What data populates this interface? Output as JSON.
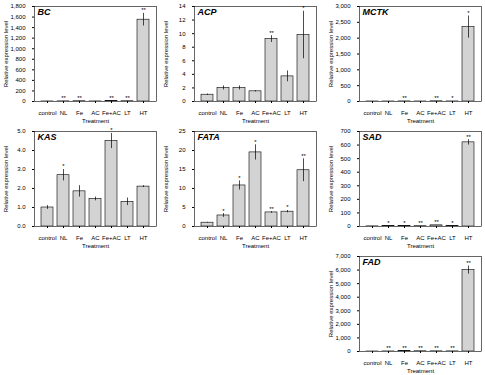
{
  "chart_data": [
    {
      "type": "bar",
      "title": "BC",
      "x_label": "Treatment",
      "y_label": "Relative expression level",
      "color": "#d3d3d3",
      "categories": [
        "control",
        "NL",
        "Fe",
        "AC",
        "Fe+AC",
        "LT",
        "HT"
      ],
      "values": [
        1,
        2.5,
        5,
        1.5,
        11,
        5,
        1550
      ],
      "error": [
        0.3,
        0.4,
        0.4,
        0.2,
        0.8,
        0.5,
        120
      ],
      "significance": [
        null,
        "**",
        "**",
        null,
        "**",
        "**",
        "**"
      ],
      "ylim": [
        0,
        1800
      ],
      "yticks": [
        0,
        200,
        400,
        600,
        800,
        1000,
        1200,
        1400,
        1600,
        1800
      ]
    },
    {
      "type": "bar",
      "title": "ACP",
      "x_label": "Treatment",
      "y_label": "Relative expression level",
      "color": "#d3d3d3",
      "categories": [
        "control",
        "NL",
        "Fe",
        "AC",
        "Fe+AC",
        "LT",
        "HT"
      ],
      "values": [
        1,
        2,
        2,
        1.5,
        9.2,
        3.7,
        9.8
      ],
      "error": [
        0.1,
        0.3,
        0.3,
        0.1,
        0.5,
        0.8,
        3.5
      ],
      "significance": [
        null,
        null,
        null,
        null,
        "**",
        null,
        "*"
      ],
      "ylim": [
        0,
        14
      ],
      "yticks": [
        0,
        2,
        4,
        6,
        8,
        10,
        12,
        14
      ]
    },
    {
      "type": "bar",
      "title": "MCTK",
      "x_label": "Treatment",
      "y_label": "Relative expression level",
      "color": "#d3d3d3",
      "categories": [
        "control",
        "NL",
        "Fe",
        "AC",
        "Fe+AC",
        "LT",
        "HT"
      ],
      "values": [
        1,
        0.5,
        3,
        0.7,
        6.5,
        2,
        2350
      ],
      "error": [
        0.2,
        0.2,
        0.3,
        0.1,
        0.4,
        0.3,
        350
      ],
      "significance": [
        null,
        null,
        "**",
        null,
        "**",
        "*",
        "*"
      ],
      "ylim": [
        0,
        3000
      ],
      "yticks": [
        0,
        500,
        1000,
        1500,
        2000,
        2500,
        3000
      ]
    },
    {
      "type": "bar",
      "title": "KAS",
      "x_label": "Treatment",
      "y_label": "Relative expression level",
      "color": "#d3d3d3",
      "categories": [
        "control",
        "NL",
        "Fe",
        "AC",
        "Fe+AC",
        "LT",
        "HT"
      ],
      "values": [
        1,
        2.7,
        1.85,
        1.45,
        4.5,
        1.3,
        2.1
      ],
      "error": [
        0.1,
        0.3,
        0.3,
        0.1,
        0.4,
        0.2,
        0.05
      ],
      "significance": [
        null,
        "*",
        null,
        null,
        "*",
        null,
        null
      ],
      "ylim": [
        0,
        5
      ],
      "yticks": [
        0,
        1,
        2,
        3,
        4,
        5
      ]
    },
    {
      "type": "bar",
      "title": "FATA",
      "x_label": "Treatment",
      "y_label": "Relative expression level",
      "color": "#d3d3d3",
      "categories": [
        "control",
        "NL",
        "Fe",
        "AC",
        "Fe+AC",
        "LT",
        "HT"
      ],
      "values": [
        1,
        2.9,
        10.8,
        19.5,
        3.7,
        3.9,
        14.8
      ],
      "error": [
        0.1,
        0.5,
        1.2,
        2,
        0.2,
        0.3,
        3
      ],
      "significance": [
        null,
        "*",
        "*",
        "*",
        "**",
        "*",
        "**"
      ],
      "ylim": [
        0,
        25
      ],
      "yticks": [
        0,
        5,
        10,
        15,
        20,
        25
      ]
    },
    {
      "type": "bar",
      "title": "SAD",
      "x_label": "Treatment",
      "y_label": "Relative expression level",
      "color": "#d3d3d3",
      "categories": [
        "control",
        "NL",
        "Fe",
        "AC",
        "Fe+AC",
        "LT",
        "HT"
      ],
      "values": [
        1,
        3,
        3,
        2.2,
        8.5,
        3,
        620
      ],
      "error": [
        0.1,
        0.5,
        0.5,
        0.2,
        0.5,
        0.5,
        20
      ],
      "significance": [
        null,
        "*",
        "*",
        "**",
        "**",
        "*",
        "**"
      ],
      "ylim": [
        0,
        700
      ],
      "yticks": [
        0,
        100,
        200,
        300,
        400,
        500,
        600,
        700
      ]
    },
    {
      "type": "bar",
      "title": "FAD",
      "x_label": "Treatment",
      "y_label": "Relative expression level",
      "color": "#d3d3d3",
      "categories": [
        "control",
        "NL",
        "Fe",
        "AC",
        "Fe+AC",
        "LT",
        "HT"
      ],
      "values": [
        1,
        5,
        32,
        17,
        13,
        9,
        6000
      ],
      "error": [
        0.1,
        1,
        2,
        1.5,
        1,
        0.5,
        300
      ],
      "significance": [
        null,
        "**",
        "**",
        "**",
        "**",
        "**",
        "**"
      ],
      "ylim": [
        0,
        7000
      ],
      "yticks": [
        0,
        1000,
        2000,
        3000,
        4000,
        5000,
        6000,
        7000
      ]
    }
  ]
}
